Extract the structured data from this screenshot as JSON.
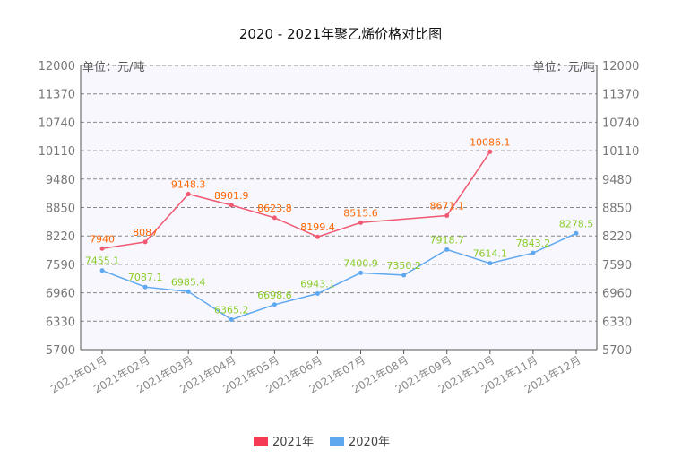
{
  "chart_data": {
    "type": "line",
    "title": "2020 - 2021年聚乙烯价格对比图",
    "unit_left": "单位：元/吨",
    "unit_right": "单位：元/吨",
    "ylim": [
      5700,
      12000
    ],
    "yticks": [
      5700,
      6330,
      6960,
      7590,
      8220,
      8850,
      9480,
      10110,
      10740,
      11370,
      12000
    ],
    "grid": true,
    "legend_position": "bottom-center",
    "categories": [
      "2021年01月",
      "2021年02月",
      "2021年03月",
      "2021年04月",
      "2021年05月",
      "2021年06月",
      "2021年07月",
      "2021年08月",
      "2021年09月",
      "2021年10月",
      "2021年11月",
      "2021年12月"
    ],
    "series": [
      {
        "name": "2021年",
        "color": "#f05a73",
        "label_color": "#ff6600",
        "values": [
          7940,
          8087,
          9148.3,
          8901.9,
          8623.8,
          8199.4,
          8515.6,
          null,
          8671.1,
          10086.1,
          null,
          null
        ],
        "labels": [
          "7940",
          "8087",
          "9148.3",
          "8901.9",
          "8623.8",
          "8199.4",
          "8515.6",
          null,
          "8671.1",
          "10086.1",
          null,
          null
        ]
      },
      {
        "name": "2020年",
        "color": "#5ea8f0",
        "label_color": "#8acc28",
        "values": [
          7455.1,
          7087.1,
          6985.4,
          6365.2,
          6698.6,
          6943.1,
          7400.9,
          7350.2,
          7918.7,
          7614.1,
          7843.2,
          8278.5
        ],
        "labels": [
          "7455.1",
          "7087.1",
          "6985.4",
          "6365.2",
          "6698.6",
          "6943.1",
          "7400.9",
          "7350.2",
          "7918.7",
          "7614.1",
          "7843.2",
          "8278.5"
        ]
      }
    ]
  },
  "colors": {
    "plot_bg": "#f7f7fd",
    "grid": "#888888",
    "axis": "#555555",
    "legend_2021": "#f53a56",
    "legend_2020": "#5ea8f0"
  }
}
